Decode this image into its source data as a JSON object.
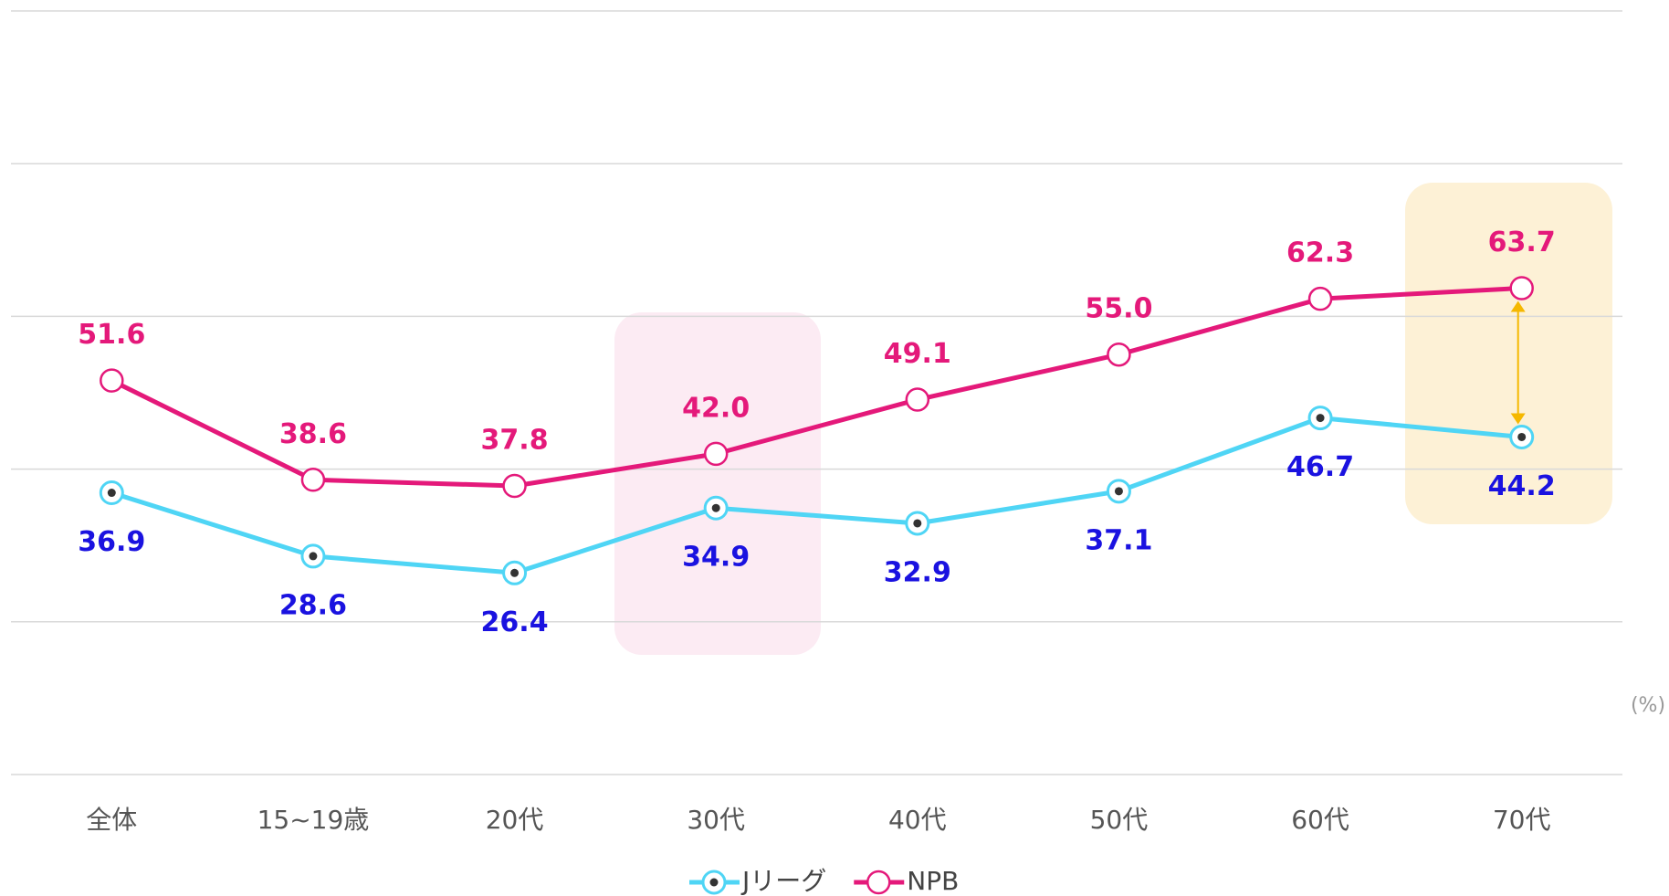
{
  "chart_data": {
    "type": "line",
    "categories": [
      "全体",
      "15~19歳",
      "20代",
      "30代",
      "40代",
      "50代",
      "60代",
      "70代"
    ],
    "series": [
      {
        "name": "Jリーグ",
        "color": "#4fd5f5",
        "label_color": "#1a12e0",
        "values": [
          36.9,
          28.6,
          26.4,
          34.9,
          32.9,
          37.1,
          46.7,
          44.2
        ],
        "value_labels": [
          "36.9",
          "28.6",
          "26.4",
          "34.9",
          "32.9",
          "37.1",
          "46.7",
          "44.2"
        ]
      },
      {
        "name": "NPB",
        "color": "#e4197a",
        "label_color": "#e4197a",
        "values": [
          51.6,
          38.6,
          37.8,
          42.0,
          49.1,
          55.0,
          62.3,
          63.7
        ],
        "value_labels": [
          "51.6",
          "38.6",
          "37.8",
          "42.0",
          "49.1",
          "55.0",
          "62.3",
          "63.7"
        ]
      }
    ],
    "ylim": [
      0,
      100
    ],
    "yticks": [
      0,
      20,
      40,
      60,
      80,
      100
    ],
    "grid": true,
    "unit_label": "(%)",
    "legend": "bottom"
  }
}
